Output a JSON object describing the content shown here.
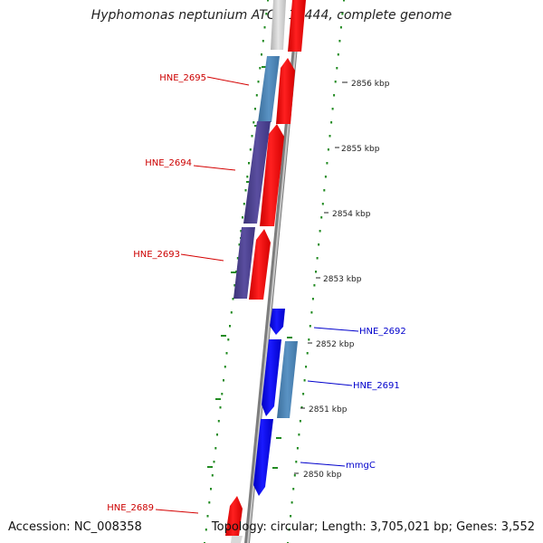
{
  "title": "Hyphomonas neptunium ATCC 15444, complete genome",
  "footer": {
    "accession": "Accession: NC_008358",
    "summary": "Topology: circular; Length: 3,705,021 bp; Genes: 3,552"
  },
  "colors": {
    "forward_feature": "#ff0000",
    "reverse_feature": "#0000ff",
    "cog_light_blue": "#4682b4",
    "cog_dark_purple": "#483d8b",
    "gc_skew_ticks": "#228b22",
    "backbone": "#808080"
  },
  "scale_labels": [
    "2856 kbp",
    "2855 kbp",
    "2854 kbp",
    "2853 kbp",
    "2852 kbp",
    "2851 kbp",
    "2850 kbp"
  ],
  "gene_labels": [
    {
      "name": "HNE_2695",
      "strand": "forward"
    },
    {
      "name": "HNE_2694",
      "strand": "forward"
    },
    {
      "name": "HNE_2693",
      "strand": "forward"
    },
    {
      "name": "HNE_2692",
      "strand": "reverse"
    },
    {
      "name": "HNE_2691",
      "strand": "reverse"
    },
    {
      "name": "mmgC",
      "strand": "reverse"
    },
    {
      "name": "HNE_2689",
      "strand": "forward"
    }
  ]
}
